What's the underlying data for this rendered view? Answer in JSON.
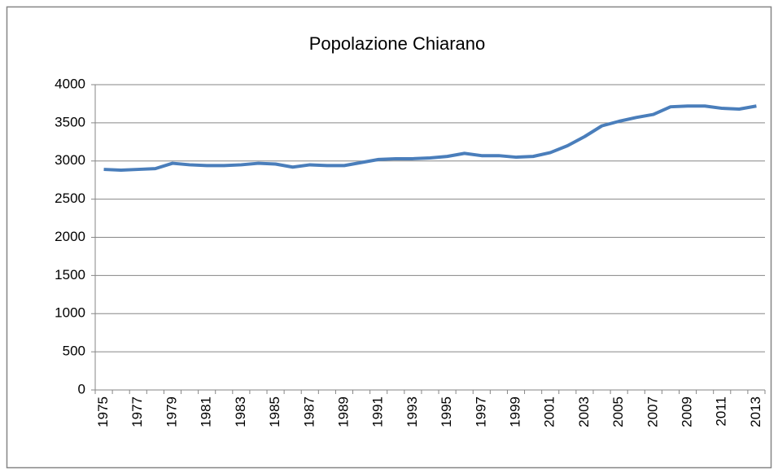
{
  "chart_data": {
    "type": "line",
    "title": "Popolazione Chiarano",
    "categories": [
      "1975",
      null,
      "1977",
      null,
      "1979",
      null,
      "1981",
      null,
      "1983",
      null,
      "1985",
      null,
      "1987",
      null,
      "1989",
      null,
      "1991",
      null,
      "1993",
      null,
      "1995",
      null,
      "1997",
      null,
      "1999",
      null,
      "2001",
      null,
      "2003",
      null,
      "2005",
      null,
      "2007",
      null,
      "2009",
      null,
      "2011",
      null,
      "2013"
    ],
    "series": [
      {
        "name": "Popolazione",
        "color": "#4a7ebb",
        "values": [
          2890,
          2880,
          2890,
          2900,
          2970,
          2950,
          2940,
          2940,
          2950,
          2970,
          2960,
          2920,
          2950,
          2940,
          2940,
          2980,
          3020,
          3030,
          3030,
          3040,
          3060,
          3100,
          3070,
          3070,
          3050,
          3060,
          3110,
          3200,
          3320,
          3460,
          3520,
          3570,
          3610,
          3710,
          3720,
          3720,
          3690,
          3680,
          3720
        ]
      }
    ],
    "ylim": [
      0,
      4000
    ],
    "yticks": [
      0,
      500,
      1000,
      1500,
      2000,
      2500,
      3000,
      3500,
      4000
    ],
    "grid": true
  }
}
